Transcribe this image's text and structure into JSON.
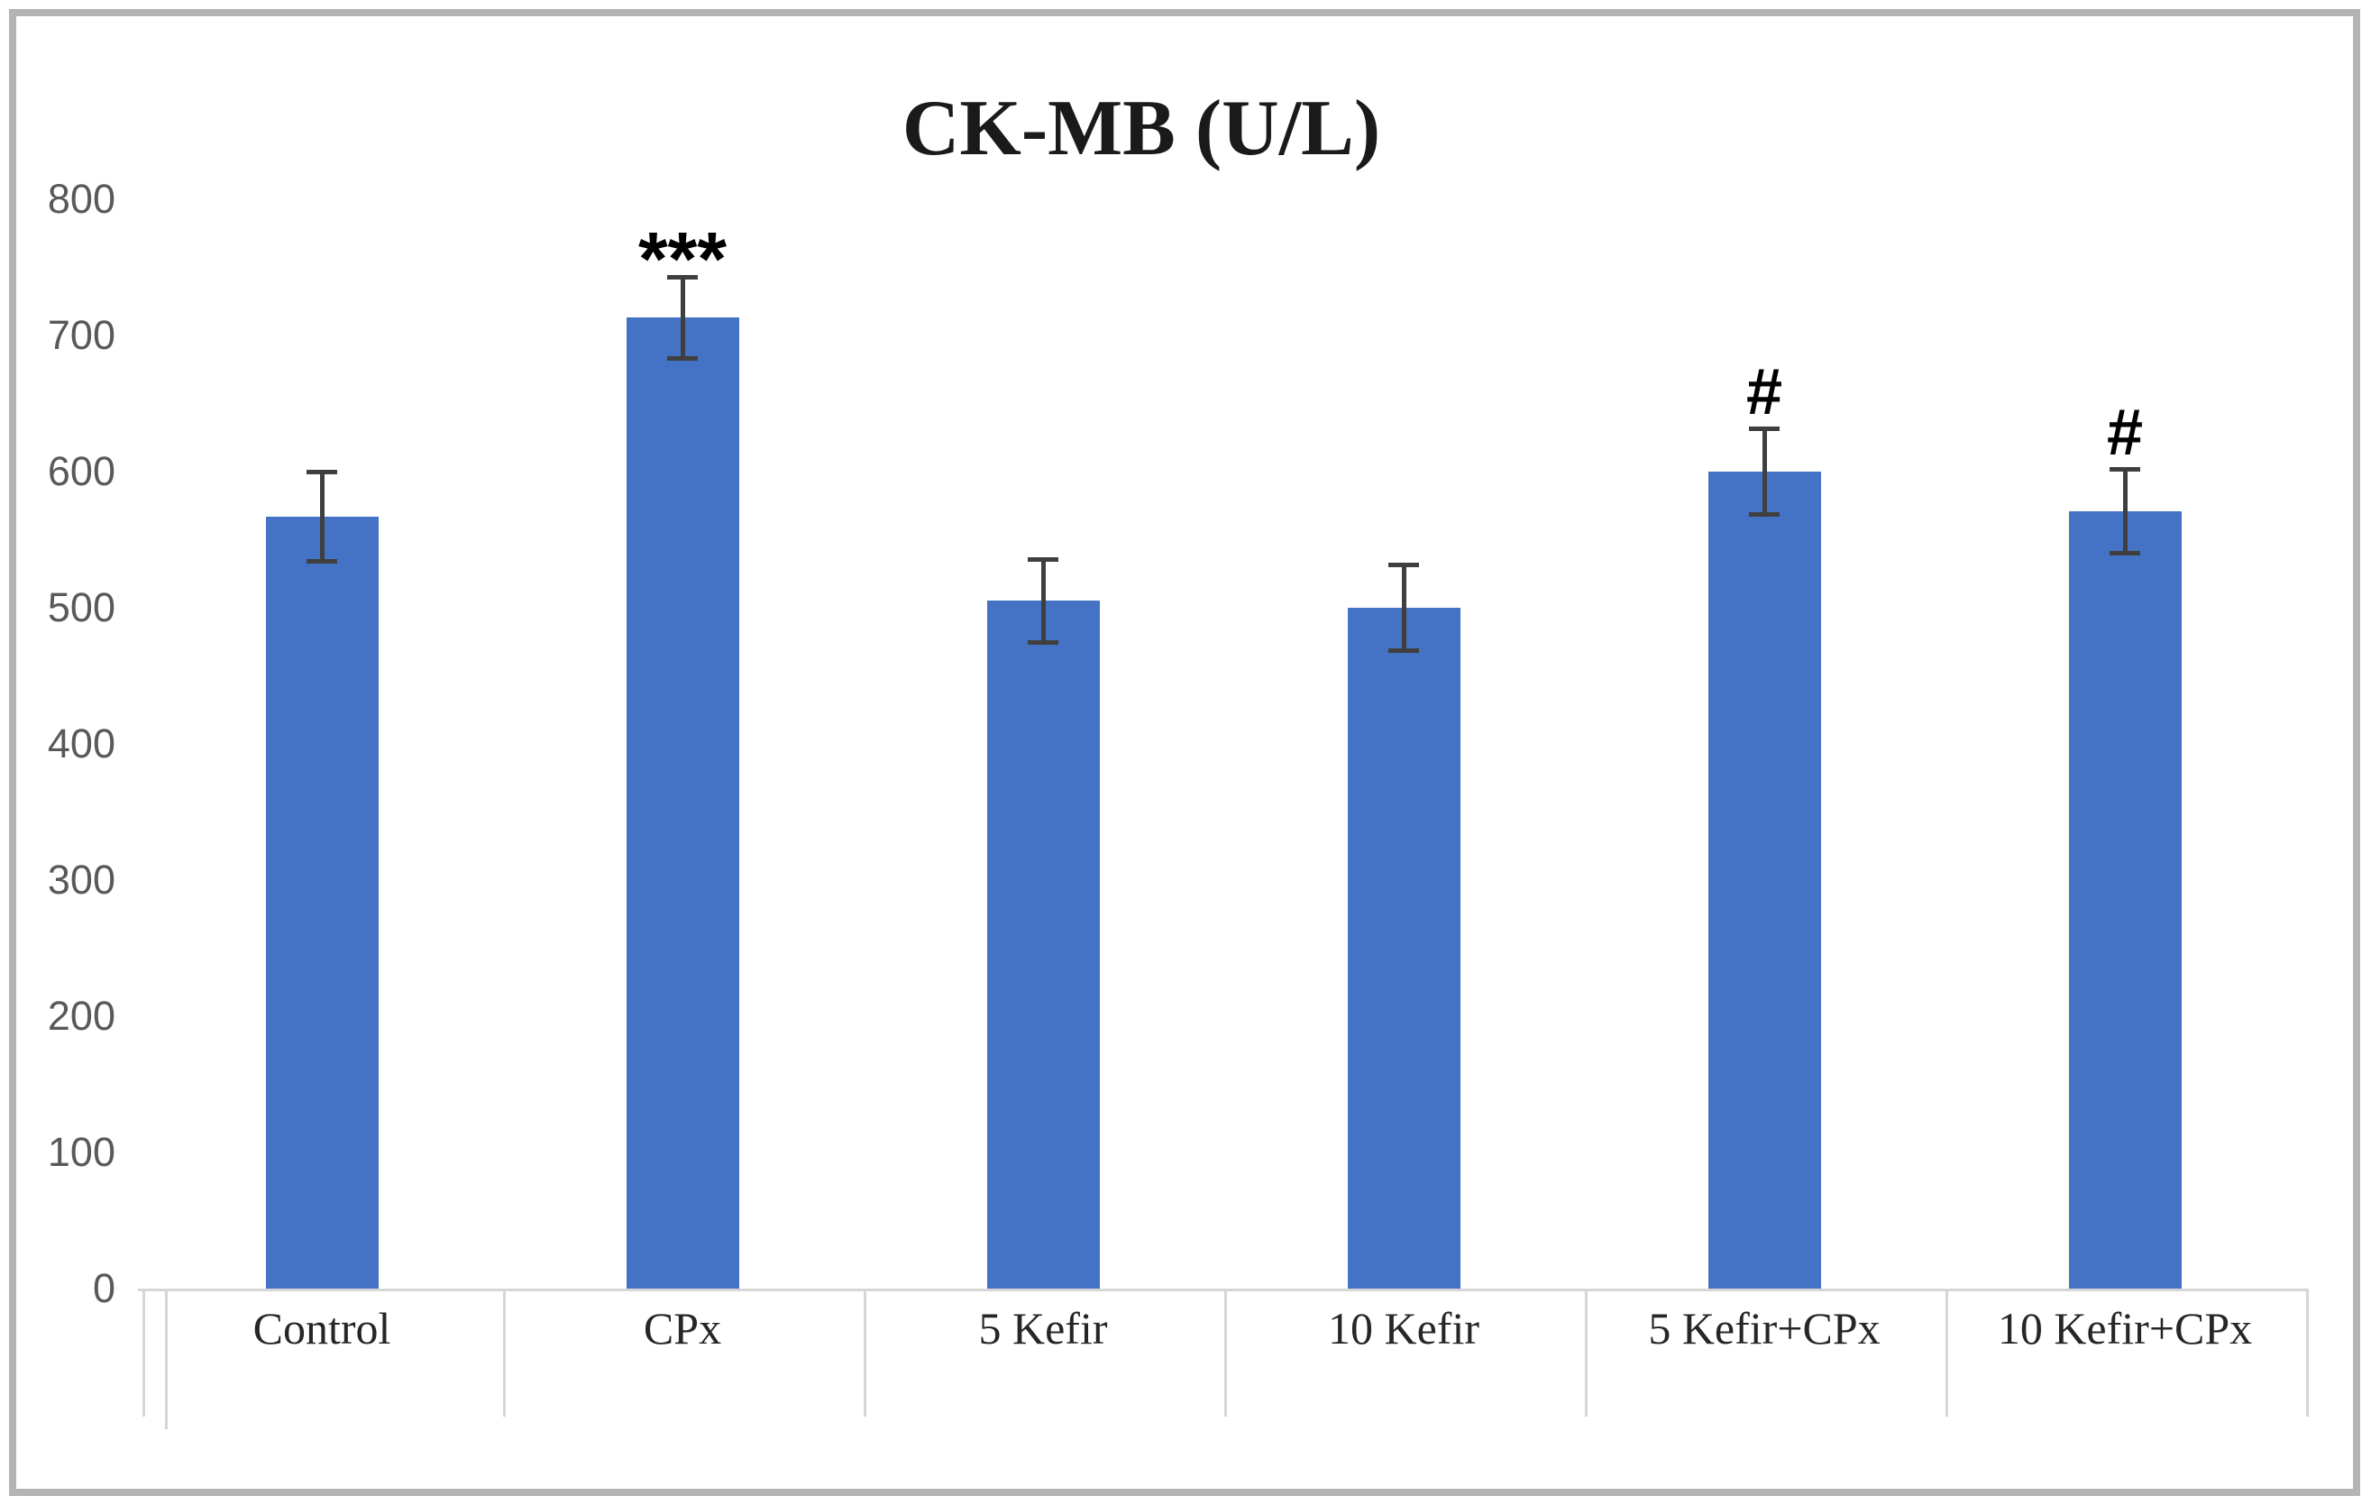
{
  "chart_data": {
    "type": "bar",
    "title": "CK-MB (U/L)",
    "categories": [
      "Control",
      "CPx",
      "5 Kefir",
      "10 Kefir",
      "5 Kefir+CPx",
      "10 Kefir+CPx"
    ],
    "values": [
      567,
      713,
      505,
      500,
      600,
      571
    ],
    "errors": [
      33,
      30,
      31,
      32,
      32,
      31
    ],
    "annotations": [
      "",
      "***",
      "",
      "",
      "#",
      "#"
    ],
    "xlabel": "",
    "ylabel": "",
    "ylim": [
      0,
      800
    ],
    "yticks": [
      0,
      100,
      200,
      300,
      400,
      500,
      600,
      700,
      800
    ],
    "grid": false,
    "legend": false,
    "colors": {
      "bar": "#4472C4",
      "error_bar": "#3F3F3F",
      "axis_line": "#D6D6D6",
      "tick_label": "#595959",
      "title_text": "#1A1A1A",
      "category_label": "#262626",
      "frame_border": "#B4B4B4"
    }
  }
}
